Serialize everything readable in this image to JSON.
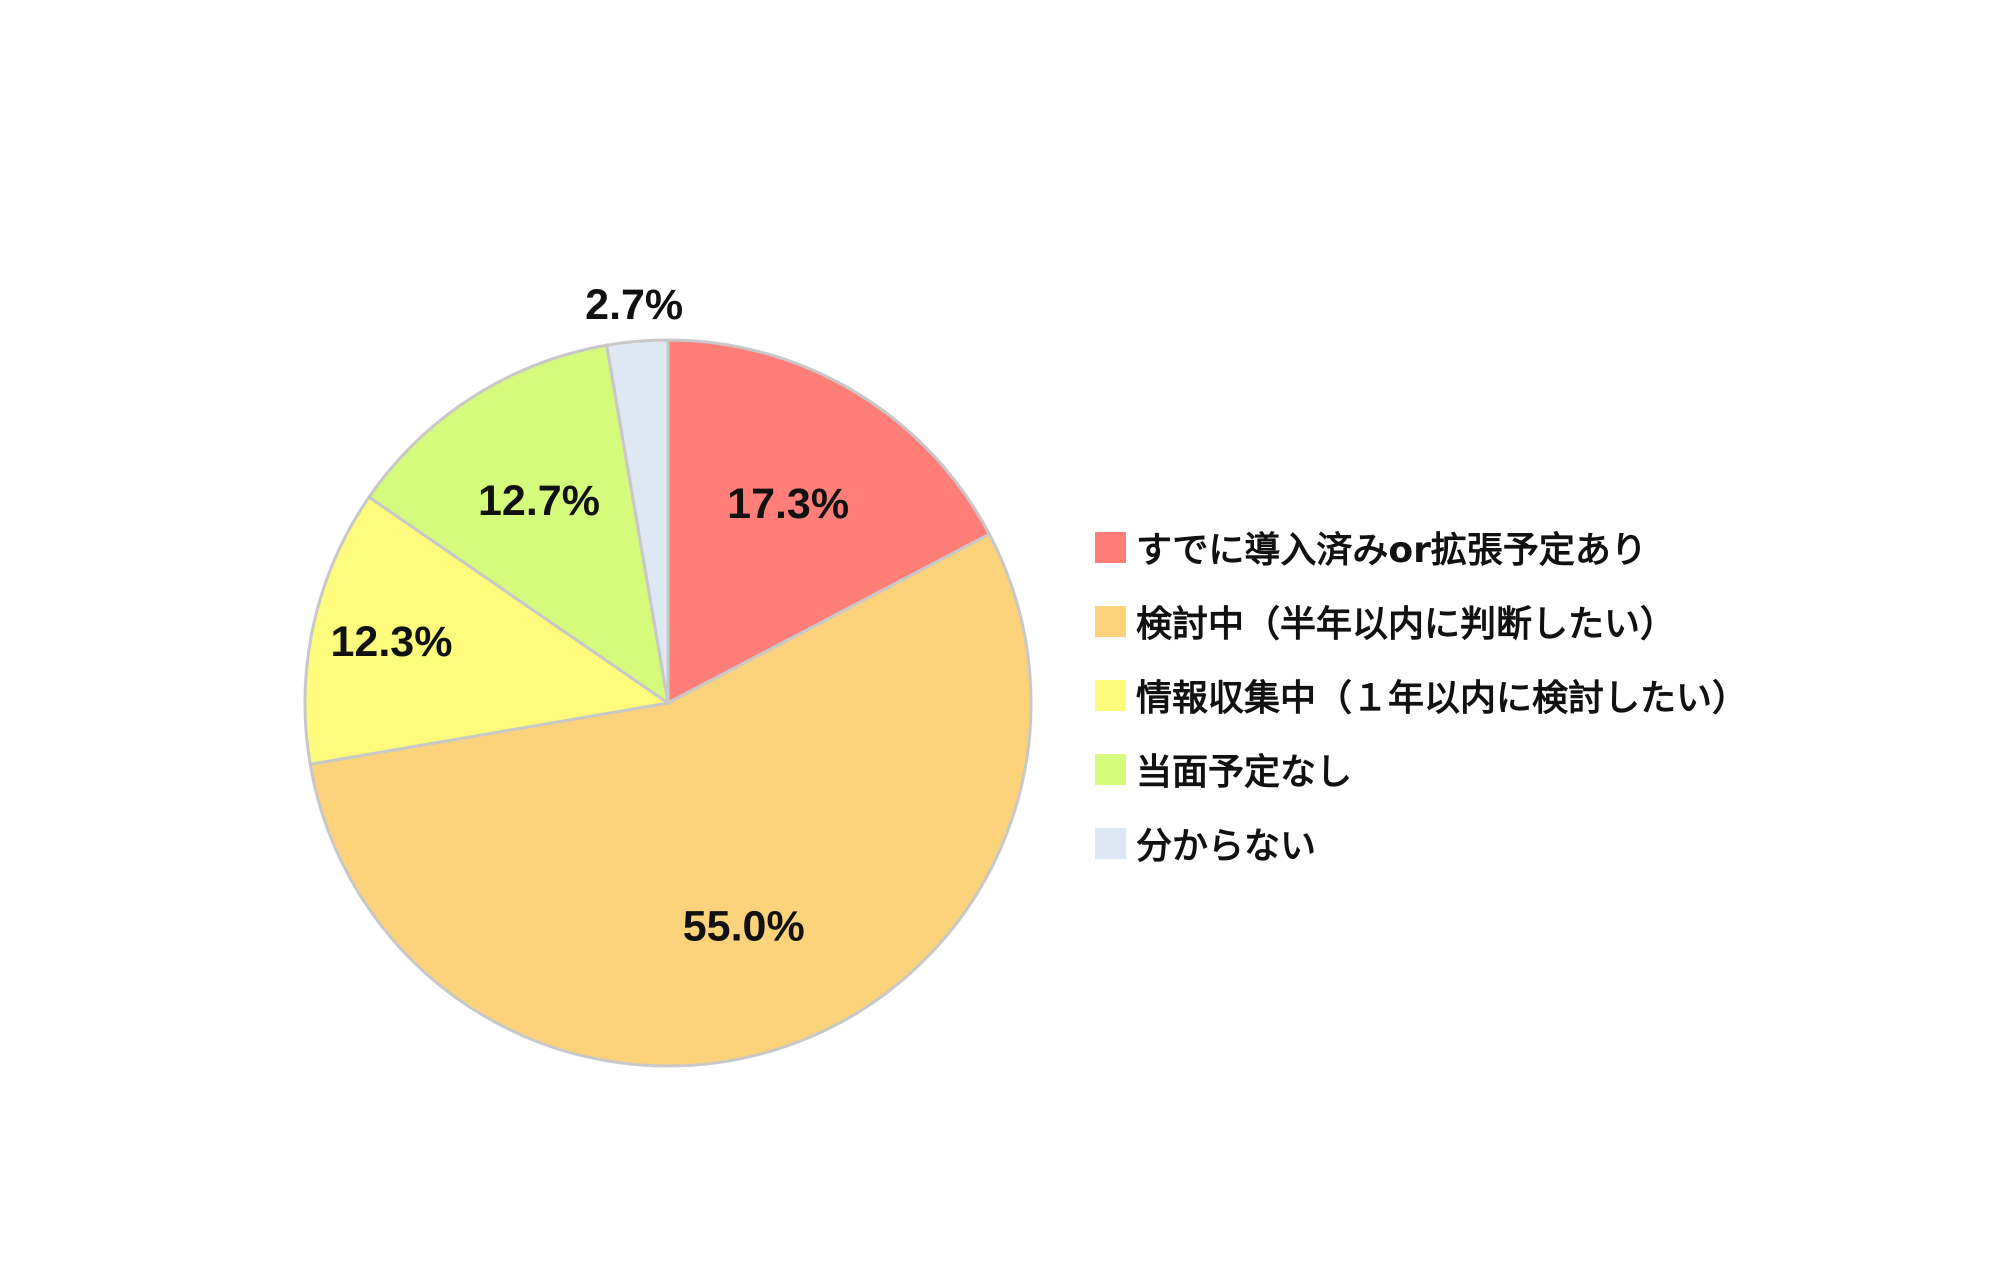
{
  "chart_data": {
    "type": "pie",
    "title": "",
    "slices": [
      {
        "label": "すでに導入済みor拡張予定あり",
        "value": 17.3,
        "value_label": "17.3%",
        "color": "#ff7f78"
      },
      {
        "label": "検討中（半年以内に判断したい）",
        "value": 55.0,
        "value_label": "55.0%",
        "color": "#fcd37b"
      },
      {
        "label": "情報収集中（１年以内に検討したい）",
        "value": 12.3,
        "value_label": "12.3%",
        "color": "#fefb7c"
      },
      {
        "label": "当面予定なし",
        "value": 12.7,
        "value_label": "12.7%",
        "color": "#d5fb7c"
      },
      {
        "label": "分からない",
        "value": 2.7,
        "value_label": "2.7%",
        "color": "#dde8f4"
      }
    ],
    "start_angle": "12 o'clock",
    "direction": "clockwise",
    "legend_position": "right"
  }
}
